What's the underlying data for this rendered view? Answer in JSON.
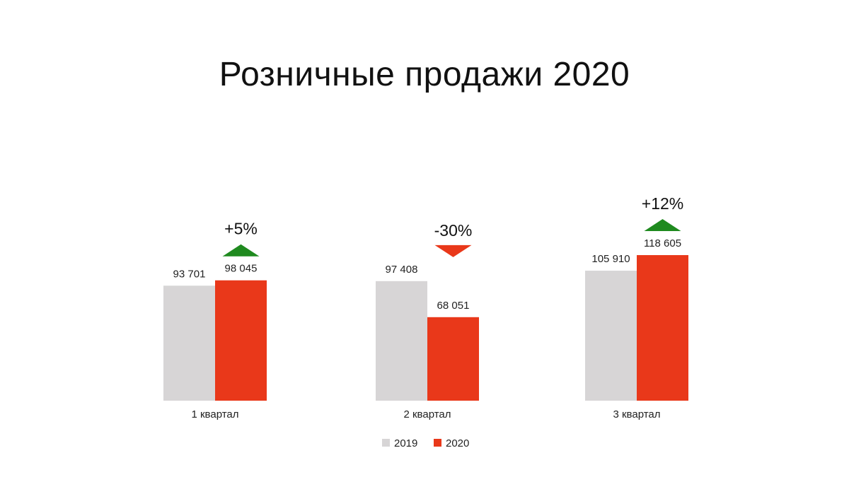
{
  "chart_data": {
    "type": "bar",
    "title": "Розничные продажи 2020",
    "categories": [
      "1 квартал",
      "2 квартал",
      "3 квартал"
    ],
    "series": [
      {
        "name": "2019",
        "values": [
          93701,
          97408,
          105910
        ],
        "labels": [
          "93 701",
          "97 408",
          "105 910"
        ],
        "color": "#d7d5d6"
      },
      {
        "name": "2020",
        "values": [
          98045,
          68051,
          118605
        ],
        "labels": [
          "98 045",
          "68 051",
          "118 605"
        ],
        "color": "#e9381a"
      }
    ],
    "changes": [
      {
        "label": "+5%",
        "direction": "up",
        "color": "#1f8a1f"
      },
      {
        "label": "-30%",
        "direction": "down",
        "color": "#e9381a"
      },
      {
        "label": "+12%",
        "direction": "up",
        "color": "#1f8a1f"
      }
    ],
    "legend_position": "bottom-center",
    "grid": false,
    "ylim": [
      0,
      130000
    ]
  }
}
